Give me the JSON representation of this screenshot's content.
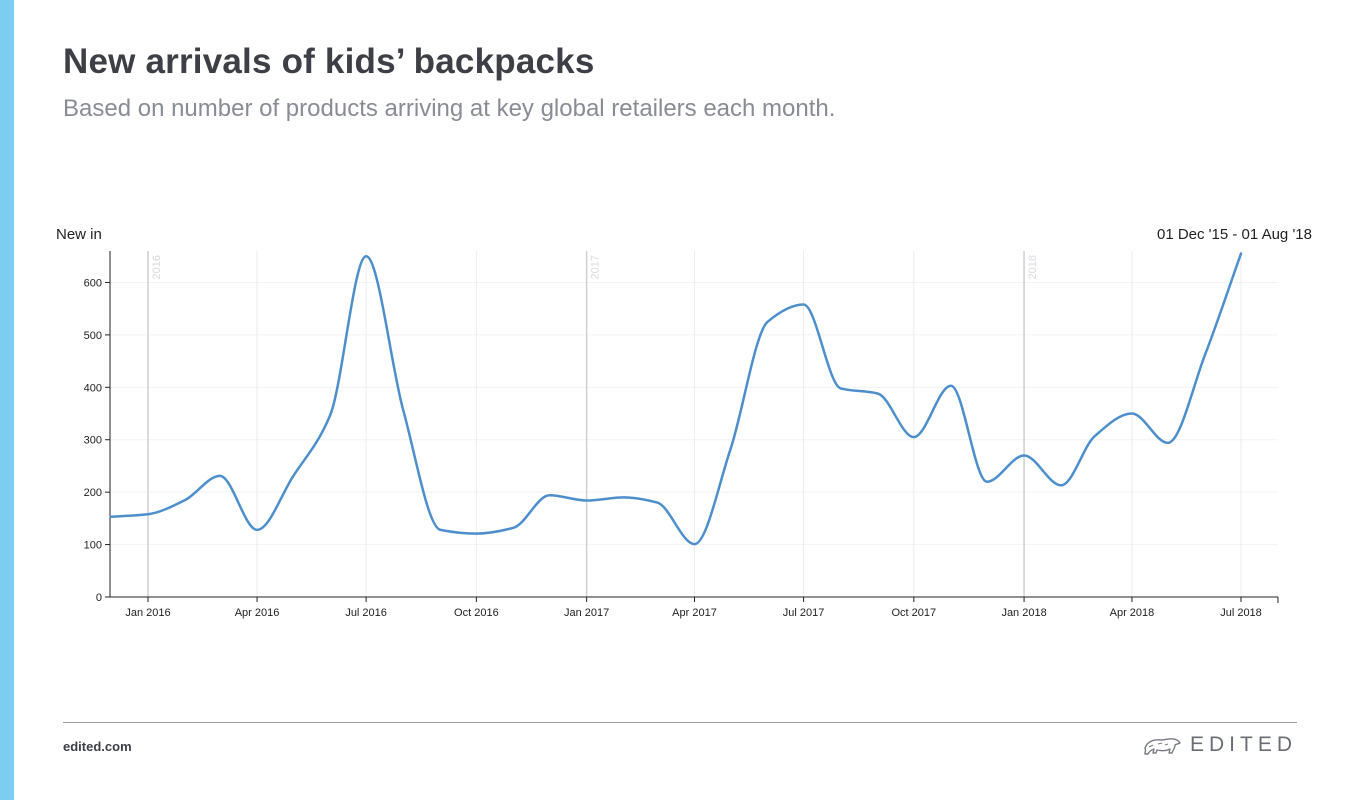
{
  "header": {
    "title": "New arrivals of kids’ backpacks",
    "subtitle": "Based on number of products arriving at key global retailers each month."
  },
  "colors": {
    "accent": "#7ccdf2",
    "line": "#4d8fcc"
  },
  "footer": {
    "site": "edited.com",
    "brand": "EDITED",
    "brand_icon": "polar-bear-icon"
  },
  "chart_data": {
    "type": "line",
    "ylabel": "New in",
    "date_range": "01 Dec '15 - 01 Aug '18",
    "ylim": [
      0,
      660
    ],
    "yticks": [
      0,
      100,
      200,
      300,
      400,
      500,
      600
    ],
    "grid": true,
    "xticks": [
      {
        "date": "2016-01-01",
        "label": "Jan 2016"
      },
      {
        "date": "2016-04-01",
        "label": "Apr 2016"
      },
      {
        "date": "2016-07-01",
        "label": "Jul 2016"
      },
      {
        "date": "2016-10-01",
        "label": "Oct 2016"
      },
      {
        "date": "2017-01-01",
        "label": "Jan 2017"
      },
      {
        "date": "2017-04-01",
        "label": "Apr 2017"
      },
      {
        "date": "2017-07-01",
        "label": "Jul 2017"
      },
      {
        "date": "2017-10-01",
        "label": "Oct 2017"
      },
      {
        "date": "2018-01-01",
        "label": "Jan 2018"
      },
      {
        "date": "2018-04-01",
        "label": "Apr 2018"
      },
      {
        "date": "2018-07-01",
        "label": "Jul 2018"
      }
    ],
    "year_markers": [
      {
        "date": "2016-01-01",
        "label": "2016"
      },
      {
        "date": "2017-01-01",
        "label": "2017"
      },
      {
        "date": "2018-01-01",
        "label": "2018"
      }
    ],
    "series": [
      {
        "points": [
          {
            "x": "2015-12-01",
            "y": 153
          },
          {
            "x": "2016-01-01",
            "y": 158
          },
          {
            "x": "2016-02-01",
            "y": 185
          },
          {
            "x": "2016-03-01",
            "y": 231
          },
          {
            "x": "2016-04-01",
            "y": 128
          },
          {
            "x": "2016-05-01",
            "y": 230
          },
          {
            "x": "2016-06-01",
            "y": 347
          },
          {
            "x": "2016-07-01",
            "y": 650
          },
          {
            "x": "2016-08-01",
            "y": 356
          },
          {
            "x": "2016-09-01",
            "y": 128
          },
          {
            "x": "2016-10-01",
            "y": 121
          },
          {
            "x": "2016-11-01",
            "y": 132
          },
          {
            "x": "2016-12-01",
            "y": 194
          },
          {
            "x": "2017-01-01",
            "y": 184
          },
          {
            "x": "2017-02-01",
            "y": 190
          },
          {
            "x": "2017-03-01",
            "y": 180
          },
          {
            "x": "2017-04-01",
            "y": 101
          },
          {
            "x": "2017-05-01",
            "y": 282
          },
          {
            "x": "2017-06-01",
            "y": 525
          },
          {
            "x": "2017-07-01",
            "y": 558
          },
          {
            "x": "2017-08-01",
            "y": 398
          },
          {
            "x": "2017-09-01",
            "y": 388
          },
          {
            "x": "2017-10-01",
            "y": 305
          },
          {
            "x": "2017-11-01",
            "y": 403
          },
          {
            "x": "2017-12-01",
            "y": 220
          },
          {
            "x": "2018-01-01",
            "y": 270
          },
          {
            "x": "2018-02-01",
            "y": 213
          },
          {
            "x": "2018-03-01",
            "y": 307
          },
          {
            "x": "2018-04-01",
            "y": 350
          },
          {
            "x": "2018-05-01",
            "y": 294
          },
          {
            "x": "2018-06-01",
            "y": 462
          },
          {
            "x": "2018-07-01",
            "y": 655
          }
        ]
      }
    ]
  }
}
